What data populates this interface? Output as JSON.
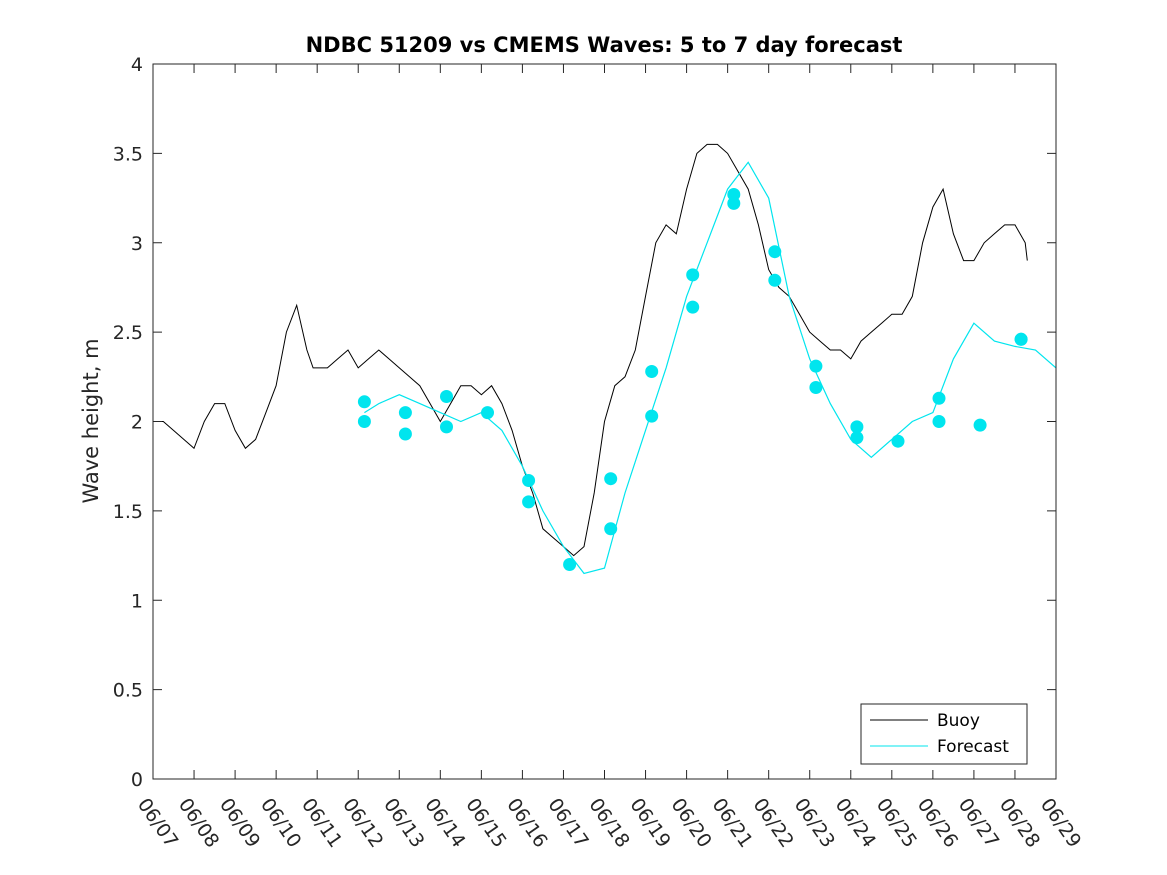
{
  "chart_data": {
    "type": "line",
    "title": "NDBC 51209 vs CMEMS Waves: 5 to 7 day forecast",
    "xlabel": "",
    "ylabel": "Wave height, m",
    "xlim": [
      "06/07",
      "06/29"
    ],
    "ylim": [
      0,
      4
    ],
    "x_tick_labels": [
      "06/07",
      "06/08",
      "06/09",
      "06/10",
      "06/11",
      "06/12",
      "06/13",
      "06/14",
      "06/15",
      "06/16",
      "06/17",
      "06/18",
      "06/19",
      "06/20",
      "06/21",
      "06/22",
      "06/23",
      "06/24",
      "06/25",
      "06/26",
      "06/27",
      "06/28",
      "06/29"
    ],
    "y_tick_labels": [
      "0",
      "0.5",
      "1",
      "1.5",
      "2",
      "2.5",
      "3",
      "3.5",
      "4"
    ],
    "grid": false,
    "legend_position": "bottom-right",
    "colors": {
      "buoy": "#000000",
      "forecast": "#00e5ee",
      "axis": "#262626"
    },
    "series": [
      {
        "name": "Buoy",
        "x_day": [
          0,
          0.25,
          0.5,
          0.75,
          1,
          1.25,
          1.5,
          1.75,
          2,
          2.25,
          2.5,
          2.75,
          3,
          3.25,
          3.5,
          3.75,
          3.9,
          4,
          4.25,
          4.5,
          4.75,
          5,
          5.25,
          5.5,
          5.75,
          6,
          6.25,
          6.5,
          6.75,
          7,
          7.25,
          7.5,
          7.75,
          8,
          8.25,
          8.5,
          8.75,
          9,
          9.25,
          9.5,
          9.75,
          10,
          10.25,
          10.5,
          10.75,
          11,
          11.25,
          11.5,
          11.75,
          12,
          12.25,
          12.5,
          12.75,
          13,
          13.25,
          13.5,
          13.75,
          14,
          14.25,
          14.5,
          14.75,
          15,
          15.25,
          15.5,
          15.75,
          16,
          16.25,
          16.5,
          16.75,
          17,
          17.25,
          17.5,
          17.75,
          18,
          18.25,
          18.5,
          18.75,
          19,
          19.25,
          19.5,
          19.75,
          20,
          20.25,
          20.5,
          20.75,
          21,
          21.25,
          21.3
        ],
        "values": [
          2.0,
          2.0,
          1.95,
          1.9,
          1.85,
          2.0,
          2.1,
          2.1,
          1.95,
          1.85,
          1.9,
          2.05,
          2.2,
          2.5,
          2.65,
          2.4,
          2.3,
          2.3,
          2.3,
          2.35,
          2.4,
          2.3,
          2.35,
          2.4,
          2.35,
          2.3,
          2.25,
          2.2,
          2.1,
          2.0,
          2.1,
          2.2,
          2.2,
          2.15,
          2.2,
          2.1,
          1.95,
          1.75,
          1.6,
          1.4,
          1.35,
          1.3,
          1.25,
          1.3,
          1.6,
          2.0,
          2.2,
          2.25,
          2.4,
          2.7,
          3.0,
          3.1,
          3.05,
          3.3,
          3.5,
          3.55,
          3.55,
          3.5,
          3.4,
          3.3,
          3.1,
          2.85,
          2.75,
          2.7,
          2.6,
          2.5,
          2.45,
          2.4,
          2.4,
          2.35,
          2.45,
          2.5,
          2.55,
          2.6,
          2.6,
          2.7,
          3.0,
          3.2,
          3.3,
          3.05,
          2.9,
          2.9,
          3.0,
          3.05,
          3.1,
          3.1,
          3.0,
          2.9
        ]
      },
      {
        "name": "Forecast",
        "x_day": [
          5.15,
          5.5,
          6,
          6.5,
          7,
          7.5,
          8,
          8.5,
          9,
          9.5,
          10,
          10.5,
          11,
          11.5,
          12,
          12.5,
          13,
          13.5,
          14,
          14.5,
          15,
          15.5,
          16,
          16.5,
          17,
          17.5,
          18,
          18.5,
          19,
          19.5,
          20,
          20.5,
          21,
          21.5,
          22
        ],
        "values": [
          2.05,
          2.1,
          2.15,
          2.1,
          2.05,
          2.0,
          2.05,
          1.95,
          1.75,
          1.5,
          1.3,
          1.15,
          1.18,
          1.6,
          1.95,
          2.3,
          2.7,
          3.0,
          3.3,
          3.45,
          3.25,
          2.7,
          2.35,
          2.1,
          1.9,
          1.8,
          1.9,
          2.0,
          2.05,
          2.35,
          2.55,
          2.45,
          2.42,
          2.4,
          2.3
        ]
      }
    ],
    "forecast_markers": {
      "x_day": [
        5.15,
        5.15,
        6.15,
        6.15,
        7.15,
        7.15,
        8.15,
        9.15,
        9.15,
        10.15,
        11.15,
        11.15,
        12.15,
        12.15,
        13.15,
        13.15,
        14.15,
        14.15,
        15.15,
        15.15,
        16.15,
        16.15,
        17.15,
        17.15,
        18.15,
        19.15,
        19.15,
        20.15,
        21.15,
        21.15
      ],
      "values": [
        2.11,
        2.0,
        2.05,
        1.93,
        2.14,
        1.97,
        2.05,
        1.67,
        1.55,
        1.2,
        1.68,
        1.4,
        2.28,
        2.03,
        2.82,
        2.64,
        3.27,
        3.22,
        2.95,
        2.79,
        2.31,
        2.19,
        1.97,
        1.91,
        1.89,
        2.13,
        2.0,
        1.98,
        2.46,
        2.46
      ]
    }
  },
  "legend": {
    "items": [
      {
        "label": "Buoy",
        "color": "#000000"
      },
      {
        "label": "Forecast",
        "color": "#00e5ee"
      }
    ]
  }
}
